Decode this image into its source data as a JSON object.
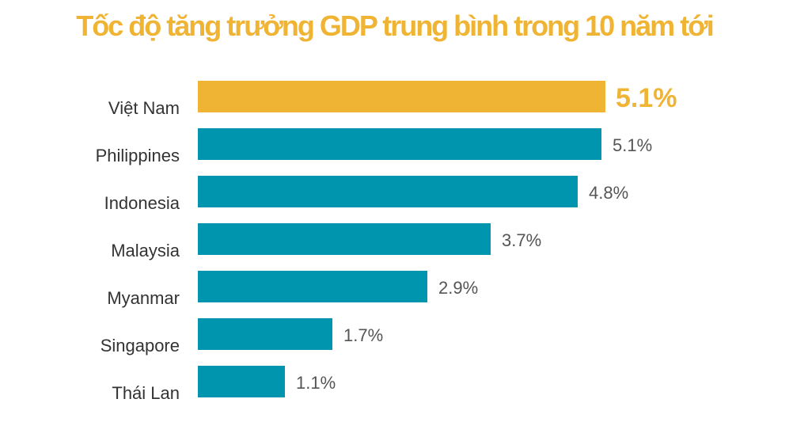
{
  "chart_data": {
    "type": "bar",
    "orientation": "horizontal",
    "title": "Tốc độ tăng trưởng GDP trung bình trong 10 năm tới",
    "categories": [
      "Việt Nam",
      "Philippines",
      "Indonesia",
      "Malaysia",
      "Myanmar",
      "Singapore",
      "Thái Lan"
    ],
    "values": [
      5.1,
      5.1,
      4.8,
      3.7,
      2.9,
      1.7,
      1.1
    ],
    "data_labels": [
      "5.1%",
      "5.1%",
      "4.8%",
      "3.7%",
      "2.9%",
      "1.7%",
      "1.1%"
    ],
    "highlight_index": 0,
    "colors": {
      "highlight": "#F0B434",
      "default": "#0095AE",
      "label": "#555555"
    },
    "xlim": [
      0,
      5.1
    ],
    "grid": false,
    "axes_visible": false
  }
}
